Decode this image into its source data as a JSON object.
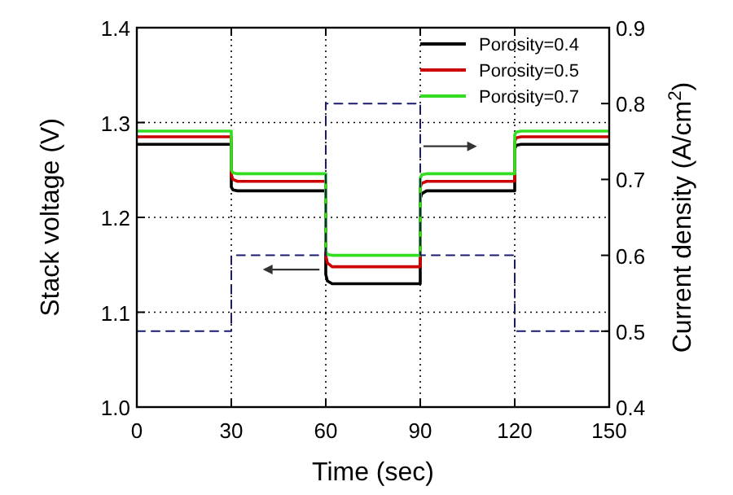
{
  "chart_data": {
    "type": "line",
    "xlabel": "Time (sec)",
    "ylabel": "Stack voltage (V)",
    "y2label": "Current density (A/cm$^{2}$)",
    "xlim": [
      0,
      150
    ],
    "xticks": [
      0,
      30,
      60,
      90,
      120,
      150
    ],
    "ylim": [
      1.0,
      1.4
    ],
    "yticks": [
      {
        "value": 1.0,
        "label": "1.0"
      },
      1.1,
      1.2,
      1.3,
      1.4
    ],
    "y2lim": [
      0.4,
      0.9
    ],
    "y2ticks": [
      0.4,
      0.5,
      0.6,
      0.7,
      0.8,
      0.9
    ],
    "grid": true,
    "legend": "top right",
    "marker": "none",
    "series": [
      {
        "name": "Porosity=0.4",
        "color": "#000000",
        "x": [
          0,
          30,
          30,
          30.5,
          32,
          60,
          60,
          60.5,
          62,
          90,
          90,
          90.5,
          92,
          120,
          120,
          120.5,
          122,
          150
        ],
        "values": [
          1.277,
          1.277,
          1.232,
          1.229,
          1.228,
          1.228,
          1.14,
          1.133,
          1.13,
          1.13,
          1.22,
          1.225,
          1.228,
          1.228,
          1.272,
          1.276,
          1.277,
          1.277
        ]
      },
      {
        "name": "Porosity=0.5",
        "color": "#cc0000",
        "x": [
          0,
          30,
          30,
          30.5,
          32,
          60,
          60,
          60.5,
          62,
          90,
          90,
          90.5,
          92,
          120,
          120,
          120.5,
          122,
          150
        ],
        "values": [
          1.285,
          1.285,
          1.245,
          1.24,
          1.238,
          1.238,
          1.16,
          1.152,
          1.148,
          1.148,
          1.232,
          1.236,
          1.238,
          1.238,
          1.28,
          1.284,
          1.285,
          1.285
        ]
      },
      {
        "name": "Porosity=0.7",
        "color": "#33dd22",
        "x": [
          0,
          30,
          30,
          30.5,
          32,
          60,
          60,
          60.5,
          62,
          90,
          90,
          90.5,
          92,
          120,
          120,
          120.5,
          122,
          150
        ],
        "values": [
          1.291,
          1.291,
          1.25,
          1.247,
          1.246,
          1.246,
          1.165,
          1.161,
          1.16,
          1.16,
          1.241,
          1.245,
          1.246,
          1.246,
          1.287,
          1.29,
          1.291,
          1.291
        ]
      },
      {
        "color": "#1a1a6e",
        "axis": "y2",
        "line_style": "dashed",
        "x": [
          0,
          30,
          30,
          60,
          60,
          90,
          90,
          120,
          120,
          150
        ],
        "values": [
          0.5,
          0.5,
          0.6,
          0.6,
          0.8,
          0.8,
          0.6,
          0.6,
          0.5,
          0.5
        ]
      }
    ]
  }
}
